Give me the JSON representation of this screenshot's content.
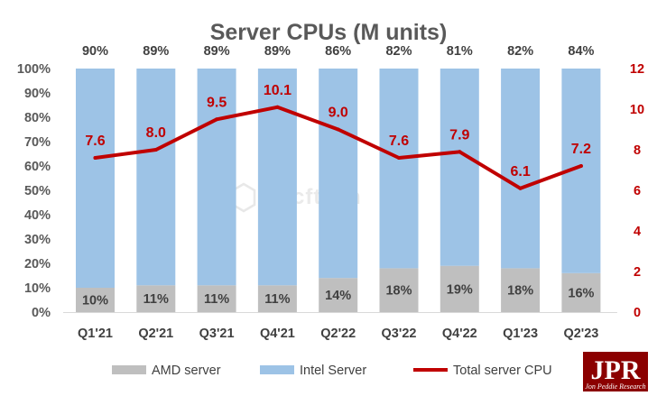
{
  "chart_data": {
    "type": "bar",
    "stacked": "percent",
    "title": "Server CPUs (M units)",
    "categories": [
      "Q1'21",
      "Q2'21",
      "Q3'21",
      "Q4'21",
      "Q2'22",
      "Q3'22",
      "Q4'22",
      "Q1'23",
      "Q2'23"
    ],
    "series": [
      {
        "name": "AMD server",
        "type": "bar",
        "axis": "left",
        "color": "#bfbfbf",
        "values": [
          10,
          11,
          11,
          11,
          14,
          18,
          19,
          18,
          16
        ],
        "labels": [
          "10%",
          "11%",
          "11%",
          "11%",
          "14%",
          "18%",
          "19%",
          "18%",
          "16%"
        ]
      },
      {
        "name": "Intel Server",
        "type": "bar",
        "axis": "left",
        "color": "#9dc3e6",
        "values": [
          90,
          89,
          89,
          89,
          86,
          82,
          81,
          82,
          84
        ],
        "labels": [
          "90%",
          "89%",
          "89%",
          "89%",
          "86%",
          "82%",
          "81%",
          "82%",
          "84%"
        ]
      },
      {
        "name": "Total server CPU",
        "type": "line",
        "axis": "right",
        "color": "#c00000",
        "values": [
          7.6,
          8.0,
          9.5,
          10.1,
          9.0,
          7.6,
          7.9,
          6.1,
          7.2
        ],
        "labels": [
          "7.6",
          "8.0",
          "9.5",
          "10.1",
          "9.0",
          "7.6",
          "7.9",
          "6.1",
          "7.2"
        ]
      }
    ],
    "y_left": {
      "ylim": [
        0,
        100
      ],
      "ticks": [
        "0%",
        "10%",
        "20%",
        "30%",
        "40%",
        "50%",
        "60%",
        "70%",
        "80%",
        "90%",
        "100%"
      ]
    },
    "y_right": {
      "ylim": [
        0,
        12
      ],
      "ticks": [
        "0",
        "2",
        "4",
        "6",
        "8",
        "10",
        "12"
      ],
      "color": "#c00000"
    },
    "grid": false,
    "legend": "bottom"
  },
  "watermark": "wccftech",
  "logo": {
    "mark": "JPR",
    "tagline": "Jon Peddie Research"
  }
}
